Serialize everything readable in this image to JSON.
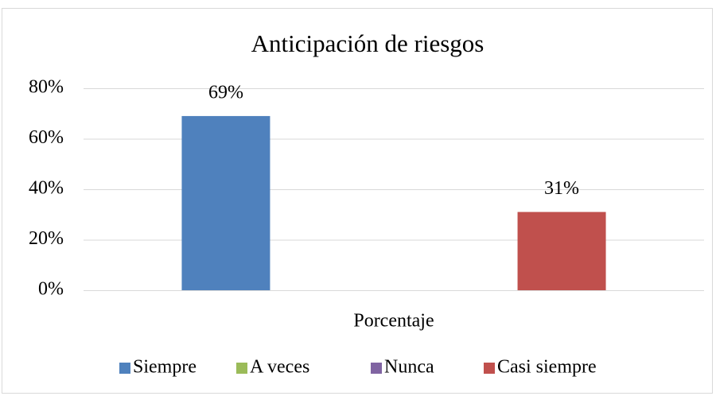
{
  "chart_data": {
    "type": "bar",
    "title": "Anticipación de riesgos",
    "categories": [
      "Porcentaje"
    ],
    "series": [
      {
        "name": "Siempre",
        "color": "#4f81bd",
        "values": [
          69
        ],
        "value_labels": [
          "69%"
        ]
      },
      {
        "name": "A veces",
        "color": "#9bbb59",
        "values": [
          null
        ]
      },
      {
        "name": "Nunca",
        "color": "#8064a2",
        "values": [
          null
        ]
      },
      {
        "name": "Casi siempre",
        "color": "#c0504d",
        "values": [
          31
        ],
        "value_labels": [
          "31%"
        ]
      }
    ],
    "ylim": [
      0,
      80
    ],
    "yticks": [
      {
        "value": 0,
        "label": "0%"
      },
      {
        "value": 20,
        "label": "20%"
      },
      {
        "value": 40,
        "label": "40%"
      },
      {
        "value": 60,
        "label": "60%"
      },
      {
        "value": 80,
        "label": "80%"
      }
    ],
    "grid": true,
    "legend": "bottom"
  }
}
